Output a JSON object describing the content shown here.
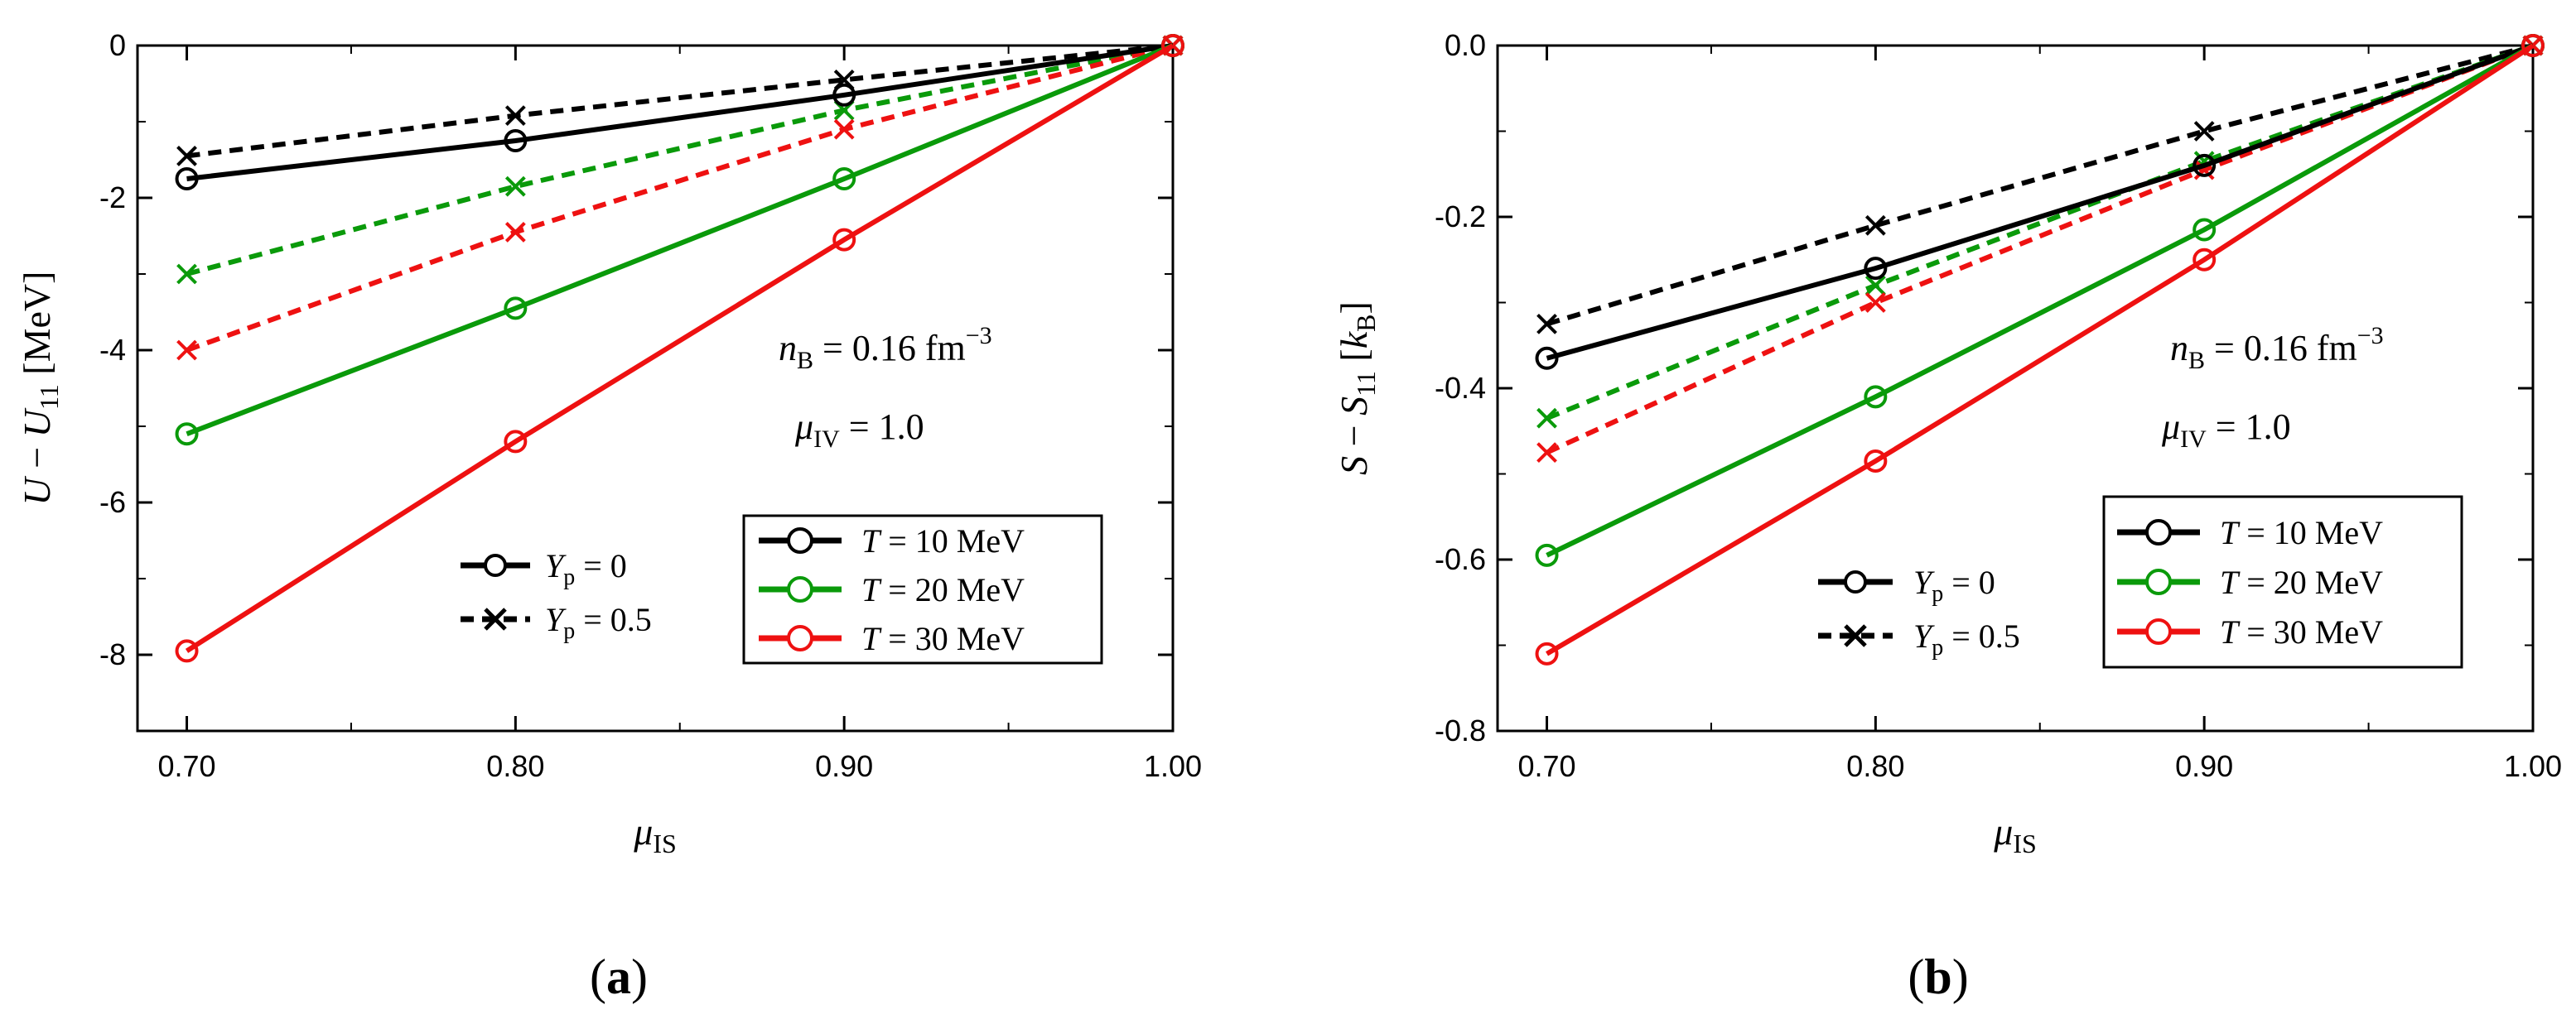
{
  "colors": {
    "black": "#000000",
    "green": "#0a9a0a",
    "red": "#ee1111"
  },
  "chart_data": [
    {
      "type": "line",
      "panel_label": "(a)",
      "panel_letter": "a",
      "xlabel": "μIS",
      "ylabel": "U − U11 [MeV]",
      "xlim": [
        0.685,
        1.0
      ],
      "ylim": [
        -9,
        0
      ],
      "x_ticks": [
        0.7,
        0.8,
        0.9,
        1.0
      ],
      "x_tick_labels": [
        "0.70",
        "0.80",
        "0.90",
        "1.00"
      ],
      "y_ticks": [
        0,
        -2,
        -4,
        -6,
        -8
      ],
      "y_tick_labels": [
        "0",
        "-2",
        "-4",
        "-6",
        "-8"
      ],
      "x": [
        0.7,
        0.8,
        0.9,
        1.0
      ],
      "annotations": [
        "nB = 0.16 fm−3",
        "μIV = 1.0"
      ],
      "series": [
        {
          "name": "T = 10 MeV, Yp = 0",
          "T": "T = 10 MeV",
          "Yp": "Yp = 0",
          "color": "#000000",
          "style": "solid",
          "marker": "circle",
          "values": [
            -1.75,
            -1.25,
            -0.65,
            0
          ]
        },
        {
          "name": "T = 10 MeV, Yp = 0.5",
          "T": "T = 10 MeV",
          "Yp": "Yp = 0.5",
          "color": "#000000",
          "style": "dashed",
          "marker": "x",
          "values": [
            -1.45,
            -0.92,
            -0.45,
            0
          ]
        },
        {
          "name": "T = 20 MeV, Yp = 0",
          "T": "T = 20 MeV",
          "Yp": "Yp = 0",
          "color": "#0a9a0a",
          "style": "solid",
          "marker": "circle",
          "values": [
            -5.1,
            -3.45,
            -1.75,
            0
          ]
        },
        {
          "name": "T = 20 MeV, Yp = 0.5",
          "T": "T = 20 MeV",
          "Yp": "Yp = 0.5",
          "color": "#0a9a0a",
          "style": "dashed",
          "marker": "x",
          "values": [
            -3.0,
            -1.85,
            -0.85,
            0
          ]
        },
        {
          "name": "T = 30 MeV, Yp = 0",
          "T": "T = 30 MeV",
          "Yp": "Yp = 0",
          "color": "#ee1111",
          "style": "solid",
          "marker": "circle",
          "values": [
            -7.95,
            -5.2,
            -2.55,
            0
          ]
        },
        {
          "name": "T = 30 MeV, Yp = 0.5",
          "T": "T = 30 MeV",
          "Yp": "Yp = 0.5",
          "color": "#ee1111",
          "style": "dashed",
          "marker": "x",
          "values": [
            -4.0,
            -2.45,
            -1.1,
            0
          ]
        }
      ],
      "legend_yp": [
        {
          "label": "Yp = 0",
          "style": "solid",
          "marker": "circle"
        },
        {
          "label": "Yp = 0.5",
          "style": "dashed",
          "marker": "x"
        }
      ],
      "legend_T": [
        {
          "label": "T = 10 MeV",
          "color": "#000000"
        },
        {
          "label": "T = 20 MeV",
          "color": "#0a9a0a"
        },
        {
          "label": "T = 30 MeV",
          "color": "#ee1111"
        }
      ]
    },
    {
      "type": "line",
      "panel_label": "(b)",
      "panel_letter": "b",
      "xlabel": "μIS",
      "ylabel": "S − S11 [kB]",
      "xlim": [
        0.685,
        1.0
      ],
      "ylim": [
        -0.8,
        0.0
      ],
      "x_ticks": [
        0.7,
        0.8,
        0.9,
        1.0
      ],
      "x_tick_labels": [
        "0.70",
        "0.80",
        "0.90",
        "1.00"
      ],
      "y_ticks": [
        0.0,
        -0.2,
        -0.4,
        -0.6,
        -0.8
      ],
      "y_tick_labels": [
        "0.0",
        "-0.2",
        "-0.4",
        "-0.6",
        "-0.8"
      ],
      "x": [
        0.7,
        0.8,
        0.9,
        1.0
      ],
      "annotations": [
        "nB = 0.16 fm−3",
        "μIV = 1.0"
      ],
      "series": [
        {
          "name": "T = 10 MeV, Yp = 0",
          "T": "T = 10 MeV",
          "Yp": "Yp = 0",
          "color": "#000000",
          "style": "solid",
          "marker": "circle",
          "values": [
            -0.365,
            -0.26,
            -0.14,
            0
          ]
        },
        {
          "name": "T = 10 MeV, Yp = 0.5",
          "T": "T = 10 MeV",
          "Yp": "Yp = 0.5",
          "color": "#000000",
          "style": "dashed",
          "marker": "x",
          "values": [
            -0.325,
            -0.21,
            -0.1,
            0
          ]
        },
        {
          "name": "T = 20 MeV, Yp = 0",
          "T": "T = 20 MeV",
          "Yp": "Yp = 0",
          "color": "#0a9a0a",
          "style": "solid",
          "marker": "circle",
          "values": [
            -0.595,
            -0.41,
            -0.215,
            0
          ]
        },
        {
          "name": "T = 20 MeV, Yp = 0.5",
          "T": "T = 20 MeV",
          "Yp": "Yp = 0.5",
          "color": "#0a9a0a",
          "style": "dashed",
          "marker": "x",
          "values": [
            -0.435,
            -0.28,
            -0.135,
            0
          ]
        },
        {
          "name": "T = 30 MeV, Yp = 0",
          "T": "T = 30 MeV",
          "Yp": "Yp = 0",
          "color": "#ee1111",
          "style": "solid",
          "marker": "circle",
          "values": [
            -0.71,
            -0.485,
            -0.25,
            0
          ]
        },
        {
          "name": "T = 30 MeV, Yp = 0.5",
          "T": "T = 30 MeV",
          "Yp": "Yp = 0.5",
          "color": "#ee1111",
          "style": "dashed",
          "marker": "x",
          "values": [
            -0.475,
            -0.3,
            -0.145,
            0
          ]
        }
      ],
      "legend_yp": [
        {
          "label": "Yp = 0",
          "style": "solid",
          "marker": "circle"
        },
        {
          "label": "Yp = 0.5",
          "style": "dashed",
          "marker": "x"
        }
      ],
      "legend_T": [
        {
          "label": "T = 10 MeV",
          "color": "#000000"
        },
        {
          "label": "T = 20 MeV",
          "color": "#0a9a0a"
        },
        {
          "label": "T = 30 MeV",
          "color": "#ee1111"
        }
      ]
    }
  ]
}
